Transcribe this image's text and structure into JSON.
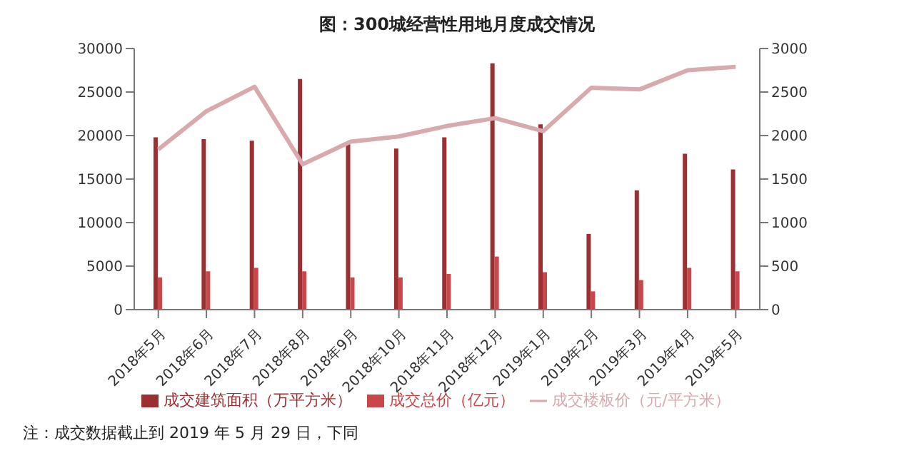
{
  "chart_data": {
    "type": "bar",
    "title": "图：300城经营性用地月度成交情况",
    "categories": [
      "2018年5月",
      "2018年6月",
      "2018年7月",
      "2018年8月",
      "2018年9月",
      "2018年10月",
      "2018年11月",
      "2018年12月",
      "2019年1月",
      "2019年2月",
      "2019年3月",
      "2019年4月",
      "2019年5月"
    ],
    "series": [
      {
        "name": "成交建筑面积（万平方米）",
        "color": "#9b2f32",
        "values": [
          19800,
          19600,
          19400,
          26500,
          19000,
          18500,
          19800,
          28300,
          21300,
          8700,
          13700,
          17900,
          16100
        ]
      },
      {
        "name": "成交总价（亿元）",
        "color": "#c9474a",
        "values": [
          3700,
          4400,
          4800,
          4400,
          3700,
          3700,
          4100,
          6100,
          4300,
          2100,
          3400,
          4800,
          4400
        ]
      },
      {
        "name": "成交楼板价（元/平方米）",
        "type": "line",
        "axis": "y2",
        "color": "#d8a9ad",
        "values": [
          1840,
          2280,
          2560,
          1670,
          1930,
          1990,
          2110,
          2200,
          2050,
          2550,
          2530,
          2750,
          2790
        ]
      }
    ],
    "ylim": [
      0,
      30000
    ],
    "yticks": [
      0,
      5000,
      10000,
      15000,
      20000,
      25000,
      30000
    ],
    "y2lim": [
      0,
      3000
    ],
    "y2ticks": [
      0,
      500,
      1000,
      1500,
      2000,
      2500,
      3000
    ],
    "grid": false,
    "legend": "bottom",
    "marker": "none",
    "annotations": [
      "注：成交数据截止到 2019 年 5 月 29 日，下同"
    ]
  }
}
